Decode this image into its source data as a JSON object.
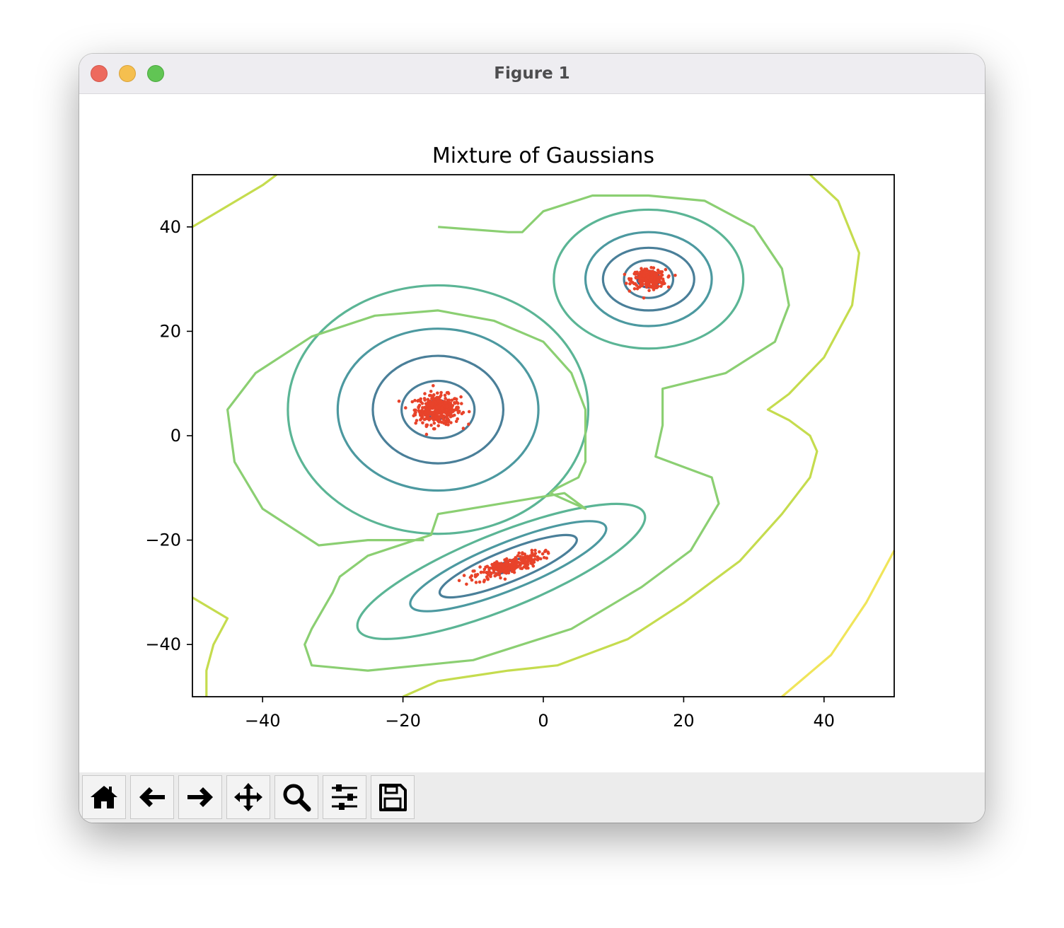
{
  "window": {
    "title": "Figure 1"
  },
  "toolbar": {
    "buttons": [
      {
        "name": "home-button",
        "icon": "home-icon"
      },
      {
        "name": "back-button",
        "icon": "arrow-left-icon"
      },
      {
        "name": "forward-button",
        "icon": "arrow-right-icon"
      },
      {
        "name": "pan-button",
        "icon": "move-icon"
      },
      {
        "name": "zoom-button",
        "icon": "magnifier-icon"
      },
      {
        "name": "configure-subplots-button",
        "icon": "sliders-icon"
      },
      {
        "name": "save-button",
        "icon": "floppy-disk-icon"
      }
    ]
  },
  "chart_data": {
    "type": "scatter",
    "title": "Mixture of Gaussians",
    "xlabel": "",
    "ylabel": "",
    "xlim": [
      -50,
      50
    ],
    "ylim": [
      -50,
      50
    ],
    "x_ticks": [
      -40,
      -20,
      0,
      20,
      40
    ],
    "y_ticks": [
      40,
      20,
      0,
      -20,
      -40
    ],
    "x_tick_labels": [
      "−40",
      "−20",
      "0",
      "20",
      "40"
    ],
    "y_tick_labels": [
      "40",
      "20",
      "0",
      "−20",
      "−40"
    ],
    "grid": false,
    "point_color": "#e8432a",
    "contour_colors": [
      "#3e5f8e",
      "#4a7f99",
      "#4c99a0",
      "#5bb595",
      "#8bcf72",
      "#c5dc4e",
      "#f0e55a"
    ],
    "clusters": [
      {
        "center": [
          -15,
          5
        ],
        "std": [
          1.6,
          1.4
        ],
        "corr": 0.0
      },
      {
        "center": [
          15,
          30
        ],
        "std": [
          1.2,
          0.9
        ],
        "corr": 0.0
      },
      {
        "center": [
          -5,
          -25
        ],
        "std": [
          2.4,
          0.8
        ],
        "corr": 0.85
      }
    ]
  }
}
